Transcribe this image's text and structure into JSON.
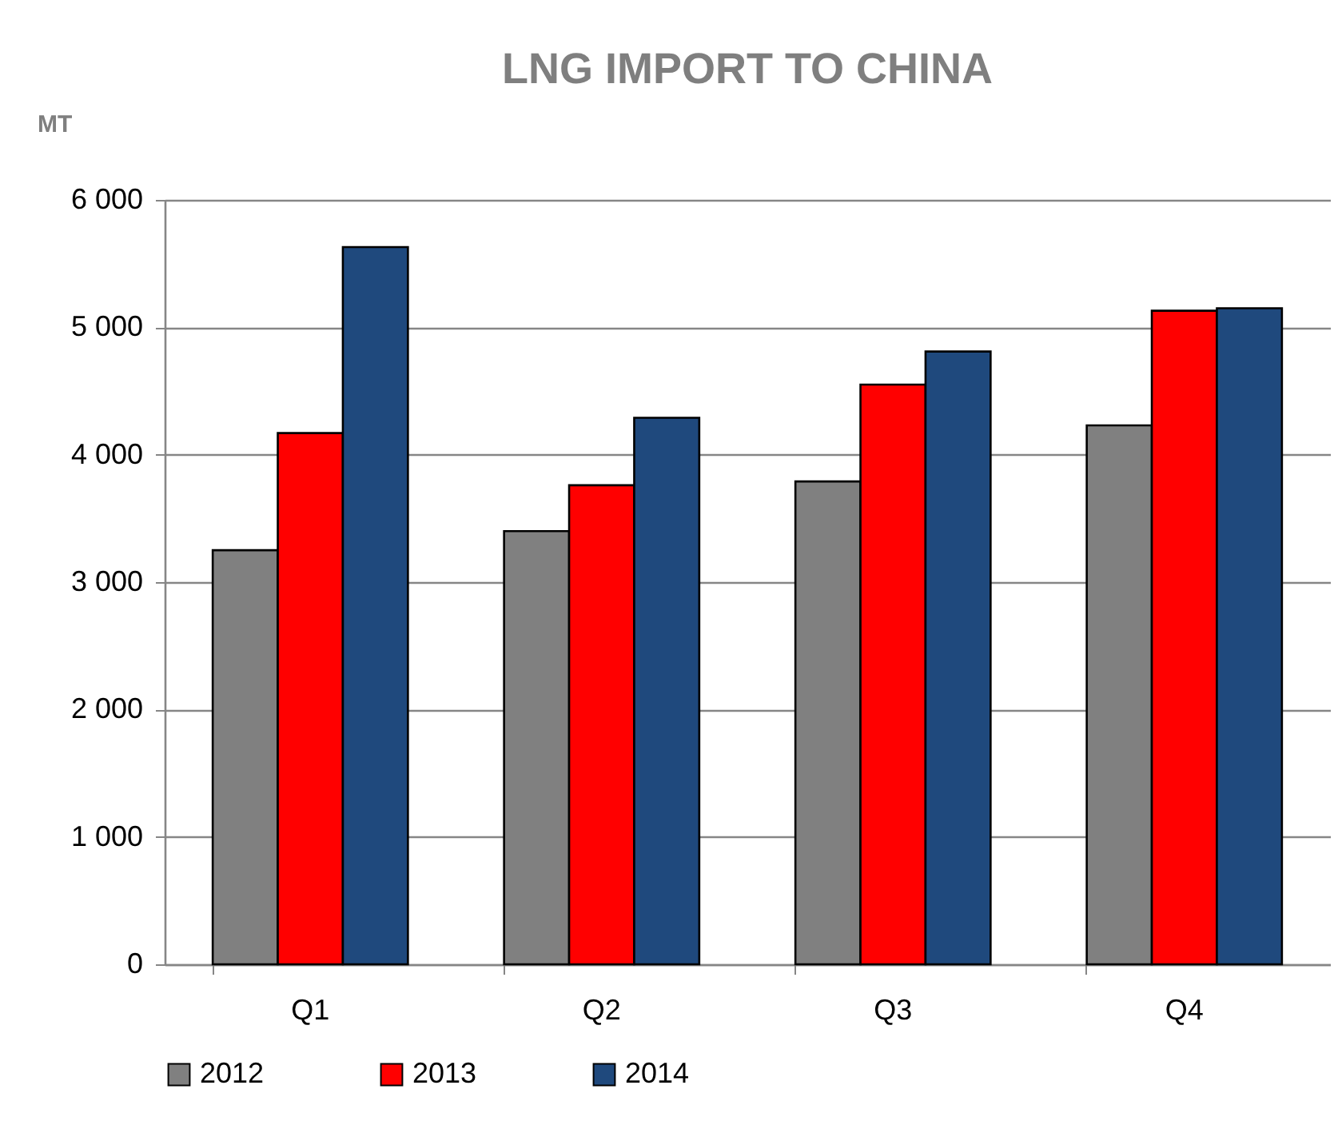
{
  "chart_data": {
    "type": "bar",
    "title": "LNG IMPORT TO CHINA",
    "ylabel": "MT",
    "categories": [
      "Q1",
      "Q2",
      "Q3",
      "Q4"
    ],
    "series": [
      {
        "name": "2012",
        "color": "#808080",
        "values": [
          3250,
          3400,
          3790,
          4230
        ]
      },
      {
        "name": "2013",
        "color": "#ff0000",
        "values": [
          4170,
          3760,
          4550,
          5130
        ]
      },
      {
        "name": "2014",
        "color": "#1f497d",
        "values": [
          5630,
          4290,
          4810,
          5150
        ]
      }
    ],
    "ylim": [
      0,
      6000
    ],
    "yticks": [
      0,
      {
        "value": 1000,
        "label": "1 000"
      },
      {
        "value": 2000,
        "label": "2 000"
      },
      {
        "value": 3000,
        "label": "3 000"
      },
      {
        "value": 4000,
        "label": "4 000"
      },
      {
        "value": 5000,
        "label": "5 000"
      },
      {
        "value": 6000,
        "label": "6 000"
      }
    ],
    "grid": "y",
    "legend": "bottom"
  }
}
